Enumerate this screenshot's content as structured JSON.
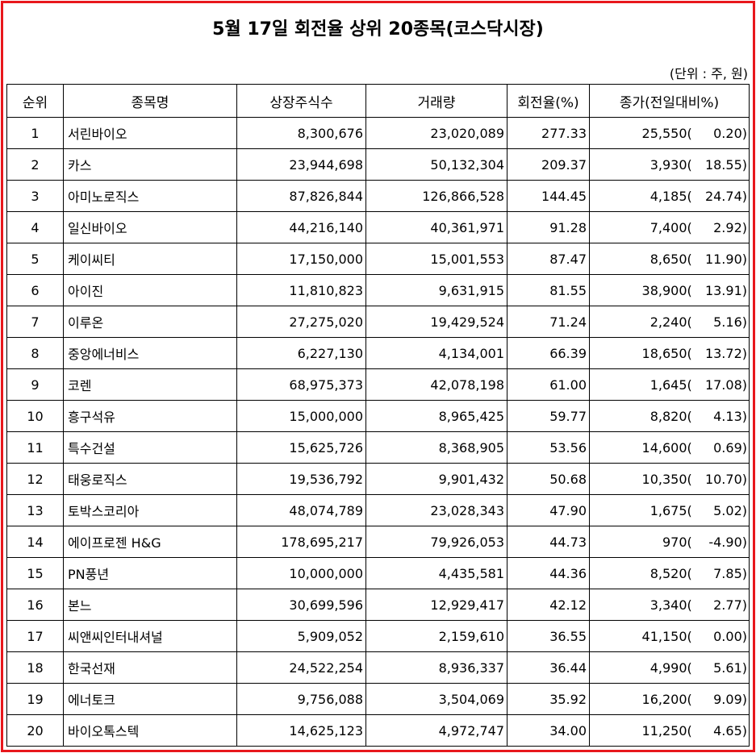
{
  "title": "5월 17일 회전율 상위 20종목(코스닥시장)",
  "unit": "(단위 : 주, 원)",
  "headers": [
    "순위",
    "종목명",
    "상장주식수",
    "거래량",
    "회전율(%)",
    "종가(전일대비%)"
  ],
  "rows": [
    {
      "rank": "1",
      "name": "서린바이오",
      "shares": "8,300,676",
      "volume": "23,020,089",
      "turnover": "277.33",
      "price": "25,550",
      "change": "0.20"
    },
    {
      "rank": "2",
      "name": "카스",
      "shares": "23,944,698",
      "volume": "50,132,304",
      "turnover": "209.37",
      "price": "3,930",
      "change": "18.55"
    },
    {
      "rank": "3",
      "name": "아미노로직스",
      "shares": "87,826,844",
      "volume": "126,866,528",
      "turnover": "144.45",
      "price": "4,185",
      "change": "24.74"
    },
    {
      "rank": "4",
      "name": "일신바이오",
      "shares": "44,216,140",
      "volume": "40,361,971",
      "turnover": "91.28",
      "price": "7,400",
      "change": "2.92"
    },
    {
      "rank": "5",
      "name": "케이씨티",
      "shares": "17,150,000",
      "volume": "15,001,553",
      "turnover": "87.47",
      "price": "8,650",
      "change": "11.90"
    },
    {
      "rank": "6",
      "name": "아이진",
      "shares": "11,810,823",
      "volume": "9,631,915",
      "turnover": "81.55",
      "price": "38,900",
      "change": "13.91"
    },
    {
      "rank": "7",
      "name": "이루온",
      "shares": "27,275,020",
      "volume": "19,429,524",
      "turnover": "71.24",
      "price": "2,240",
      "change": "5.16"
    },
    {
      "rank": "8",
      "name": "중앙에너비스",
      "shares": "6,227,130",
      "volume": "4,134,001",
      "turnover": "66.39",
      "price": "18,650",
      "change": "13.72"
    },
    {
      "rank": "9",
      "name": "코렌",
      "shares": "68,975,373",
      "volume": "42,078,198",
      "turnover": "61.00",
      "price": "1,645",
      "change": "17.08"
    },
    {
      "rank": "10",
      "name": "흥구석유",
      "shares": "15,000,000",
      "volume": "8,965,425",
      "turnover": "59.77",
      "price": "8,820",
      "change": "4.13"
    },
    {
      "rank": "11",
      "name": "특수건설",
      "shares": "15,625,726",
      "volume": "8,368,905",
      "turnover": "53.56",
      "price": "14,600",
      "change": "0.69"
    },
    {
      "rank": "12",
      "name": "태웅로직스",
      "shares": "19,536,792",
      "volume": "9,901,432",
      "turnover": "50.68",
      "price": "10,350",
      "change": "10.70"
    },
    {
      "rank": "13",
      "name": "토박스코리아",
      "shares": "48,074,789",
      "volume": "23,028,343",
      "turnover": "47.90",
      "price": "1,675",
      "change": "5.02"
    },
    {
      "rank": "14",
      "name": "에이프로젠 H&G",
      "shares": "178,695,217",
      "volume": "79,926,053",
      "turnover": "44.73",
      "price": "970",
      "change": "-4.90"
    },
    {
      "rank": "15",
      "name": "PN풍년",
      "shares": "10,000,000",
      "volume": "4,435,581",
      "turnover": "44.36",
      "price": "8,520",
      "change": "7.85"
    },
    {
      "rank": "16",
      "name": "본느",
      "shares": "30,699,596",
      "volume": "12,929,417",
      "turnover": "42.12",
      "price": "3,340",
      "change": "2.77"
    },
    {
      "rank": "17",
      "name": "씨앤씨인터내셔널",
      "shares": "5,909,052",
      "volume": "2,159,610",
      "turnover": "36.55",
      "price": "41,150",
      "change": "0.00"
    },
    {
      "rank": "18",
      "name": "한국선재",
      "shares": "24,522,254",
      "volume": "8,936,337",
      "turnover": "36.44",
      "price": "4,990",
      "change": "5.61"
    },
    {
      "rank": "19",
      "name": "에너토크",
      "shares": "9,756,088",
      "volume": "3,504,069",
      "turnover": "35.92",
      "price": "16,200",
      "change": "9.09"
    },
    {
      "rank": "20",
      "name": "바이오톡스텍",
      "shares": "14,625,123",
      "volume": "4,972,747",
      "turnover": "34.00",
      "price": "11,250",
      "change": "4.65"
    }
  ]
}
